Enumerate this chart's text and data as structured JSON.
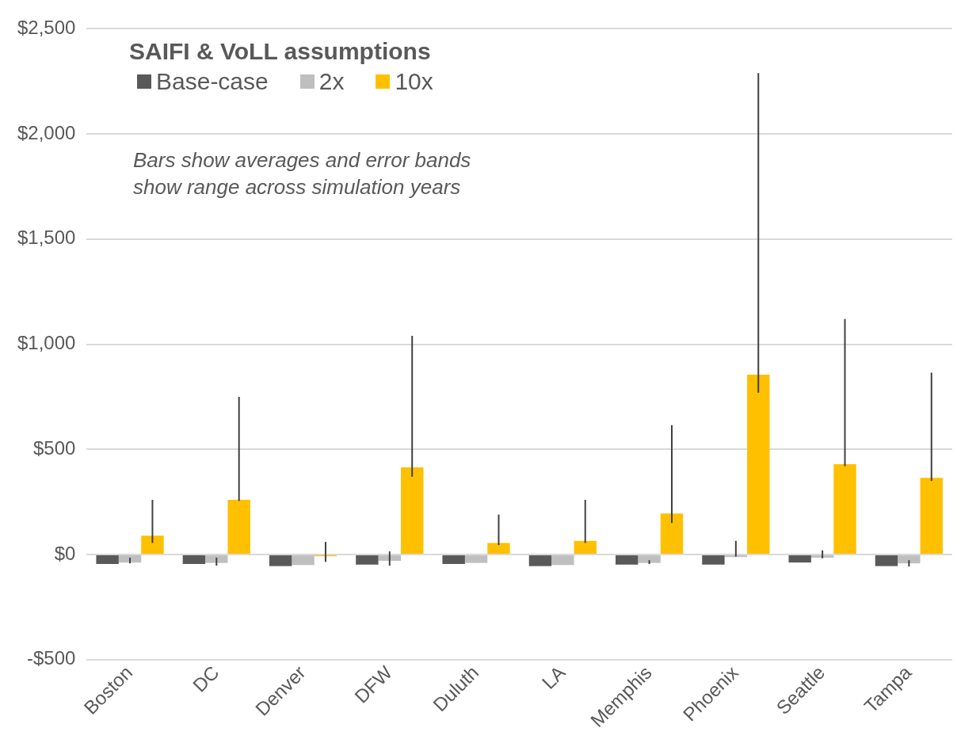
{
  "chart_data": {
    "type": "bar",
    "legend_title": "SAIFI & VoLL assumptions",
    "annotations": [
      "Bars show averages and error bands\nshow range across simulation years"
    ],
    "categories": [
      "Boston",
      "DC",
      "Denver",
      "DFW",
      "Duluth",
      "LA",
      "Memphis",
      "Phoenix",
      "Seattle",
      "Tampa"
    ],
    "series": [
      {
        "name": "Base-case",
        "color": "#595959",
        "values": [
          -45,
          -45,
          -55,
          -48,
          -45,
          -55,
          -48,
          -48,
          -38,
          -55
        ]
      },
      {
        "name": "2x",
        "color": "#bfbfbf",
        "values": [
          -38,
          -40,
          -50,
          -30,
          -40,
          -50,
          -40,
          -12,
          -15,
          -42
        ],
        "errors": [
          [
            -42,
            -15
          ],
          [
            -53,
            -15
          ],
          null,
          [
            -53,
            15
          ],
          null,
          null,
          [
            -45,
            -27
          ],
          [
            -10,
            65
          ],
          [
            -18,
            20
          ],
          [
            -57,
            -27
          ]
        ]
      },
      {
        "name": "10x",
        "color": "#ffc000",
        "values": [
          90,
          260,
          -8,
          415,
          55,
          65,
          195,
          855,
          430,
          365
        ],
        "errors": [
          [
            55,
            260
          ],
          [
            255,
            750
          ],
          [
            -35,
            60
          ],
          [
            370,
            1040
          ],
          [
            45,
            190
          ],
          [
            55,
            260
          ],
          [
            150,
            615
          ],
          [
            770,
            2290
          ],
          [
            420,
            1120
          ],
          [
            350,
            865
          ]
        ]
      }
    ],
    "ylim": [
      -500,
      2500
    ],
    "yticks": [
      {
        "value": -500,
        "label": "-$500"
      },
      {
        "value": 0,
        "label": "$0"
      },
      {
        "value": 500,
        "label": "$500"
      },
      {
        "value": 1000,
        "label": "$1,000"
      },
      {
        "value": 1500,
        "label": "$1,500"
      },
      {
        "value": 2000,
        "label": "$2,000"
      },
      {
        "value": 2500,
        "label": "$2,500"
      }
    ],
    "grid": "y",
    "legend": "top left"
  }
}
